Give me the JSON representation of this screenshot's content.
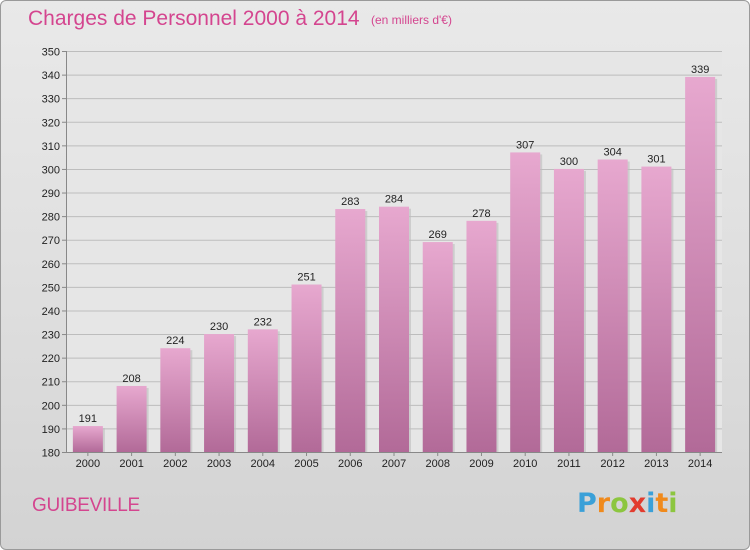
{
  "header": {
    "title": "Charges de Personnel 2000 à 2014",
    "unit_note": "(en milliers d'€)"
  },
  "commune": "GUIBEVILLE",
  "brand": {
    "name": "Proxiti",
    "letters": [
      "P",
      "r",
      "o",
      "x",
      "i",
      "t",
      "i"
    ],
    "letter_colors": [
      "#3aa0d8",
      "#f08a1c",
      "#8cc63f",
      "#e23c2e",
      "#3aa0d8",
      "#f08a1c",
      "#8cc63f"
    ]
  },
  "colors": {
    "title": "#d4458f",
    "bar_top": "#e7a8cf",
    "bar_bottom": "#b26a98"
  },
  "chart_data": {
    "type": "bar",
    "categories": [
      "2000",
      "2001",
      "2002",
      "2003",
      "2004",
      "2005",
      "2006",
      "2007",
      "2008",
      "2009",
      "2010",
      "2011",
      "2012",
      "2013",
      "2014"
    ],
    "values": [
      191,
      208,
      224,
      230,
      232,
      251,
      283,
      284,
      269,
      278,
      307,
      300,
      304,
      301,
      339
    ],
    "title": "Charges de Personnel 2000 à 2014",
    "subtitle": "(en milliers d'€)",
    "ylim": [
      180,
      350
    ],
    "yticks": [
      180,
      190,
      200,
      210,
      220,
      230,
      240,
      250,
      260,
      270,
      280,
      290,
      300,
      310,
      320,
      330,
      340,
      350
    ],
    "grid": true
  }
}
